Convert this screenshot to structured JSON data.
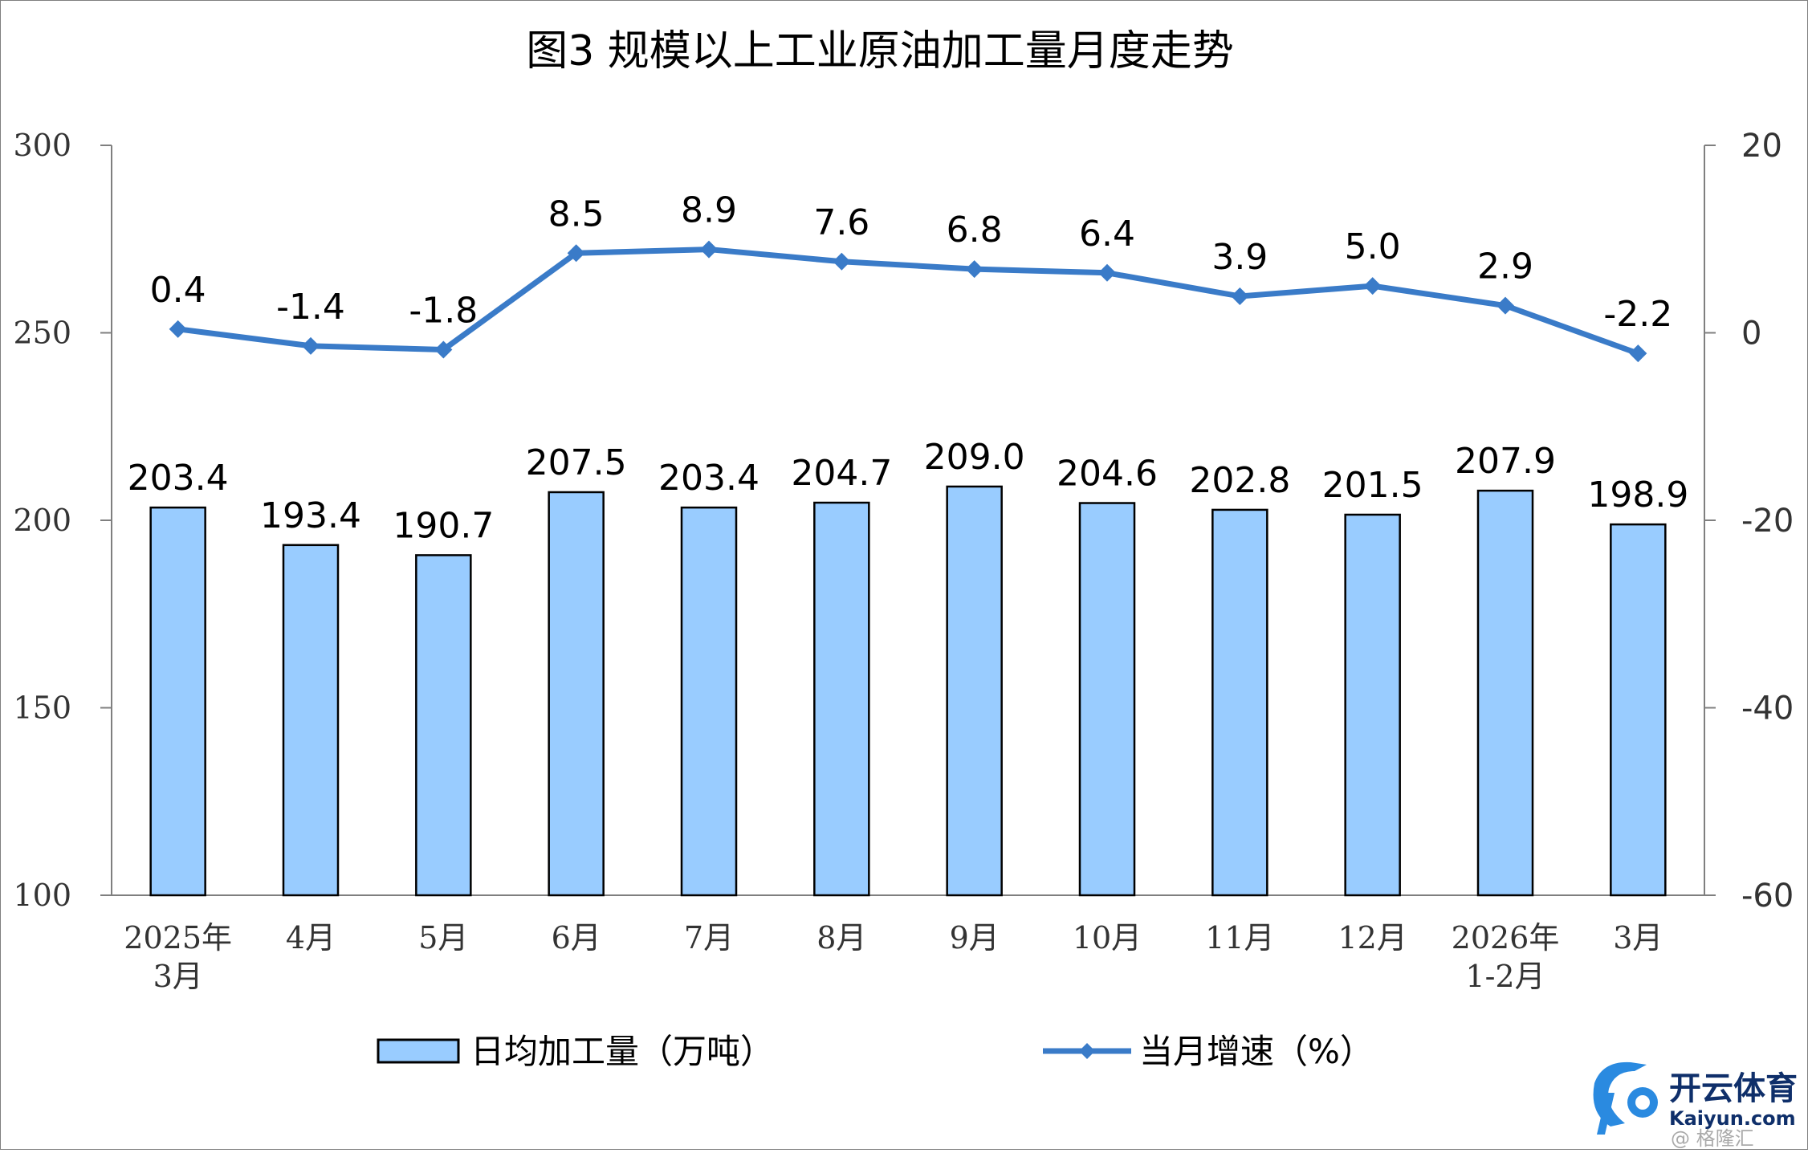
{
  "chart_data": {
    "type": "bar",
    "title": "图3  规模以上工业原油加工量月度走势",
    "categories": [
      [
        "2025年",
        "3月"
      ],
      [
        "4月"
      ],
      [
        "5月"
      ],
      [
        "6月"
      ],
      [
        "7月"
      ],
      [
        "8月"
      ],
      [
        "9月"
      ],
      [
        "10月"
      ],
      [
        "11月"
      ],
      [
        "12月"
      ],
      [
        "2026年",
        "1-2月"
      ],
      [
        "3月"
      ]
    ],
    "series": [
      {
        "name": "日均加工量（万吨）",
        "type": "bar",
        "axis": "left",
        "color": "#99ccff",
        "values": [
          203.4,
          193.4,
          190.7,
          207.5,
          203.4,
          204.7,
          209.0,
          204.6,
          202.8,
          201.5,
          207.9,
          198.9
        ],
        "labels": [
          "203.4",
          "193.4",
          "190.7",
          "207.5",
          "203.4",
          "204.7",
          "209.0",
          "204.6",
          "202.8",
          "201.5",
          "207.9",
          "198.9"
        ]
      },
      {
        "name": "当月增速（%）",
        "type": "line",
        "axis": "right",
        "color": "#3a7bc8",
        "values": [
          0.4,
          -1.4,
          -1.8,
          8.5,
          8.9,
          7.6,
          6.8,
          6.4,
          3.9,
          5.0,
          2.9,
          -2.2
        ],
        "labels": [
          "0.4",
          "-1.4",
          "-1.8",
          "8.5",
          "8.9",
          "7.6",
          "6.8",
          "6.4",
          "3.9",
          "5.0",
          "2.9",
          "-2.2"
        ]
      }
    ],
    "ylim_left": [
      100,
      300
    ],
    "yticks_left": [
      100,
      150,
      200,
      250,
      300
    ],
    "ylim_right": [
      -60,
      20
    ],
    "yticks_right": [
      -60,
      -40,
      -20,
      0,
      20
    ],
    "grid": false,
    "legend_position": "bottom"
  },
  "watermark": {
    "logo_text": "开云体育",
    "sub_text": "Kaiyun.com",
    "credit": "@ 格隆汇"
  }
}
